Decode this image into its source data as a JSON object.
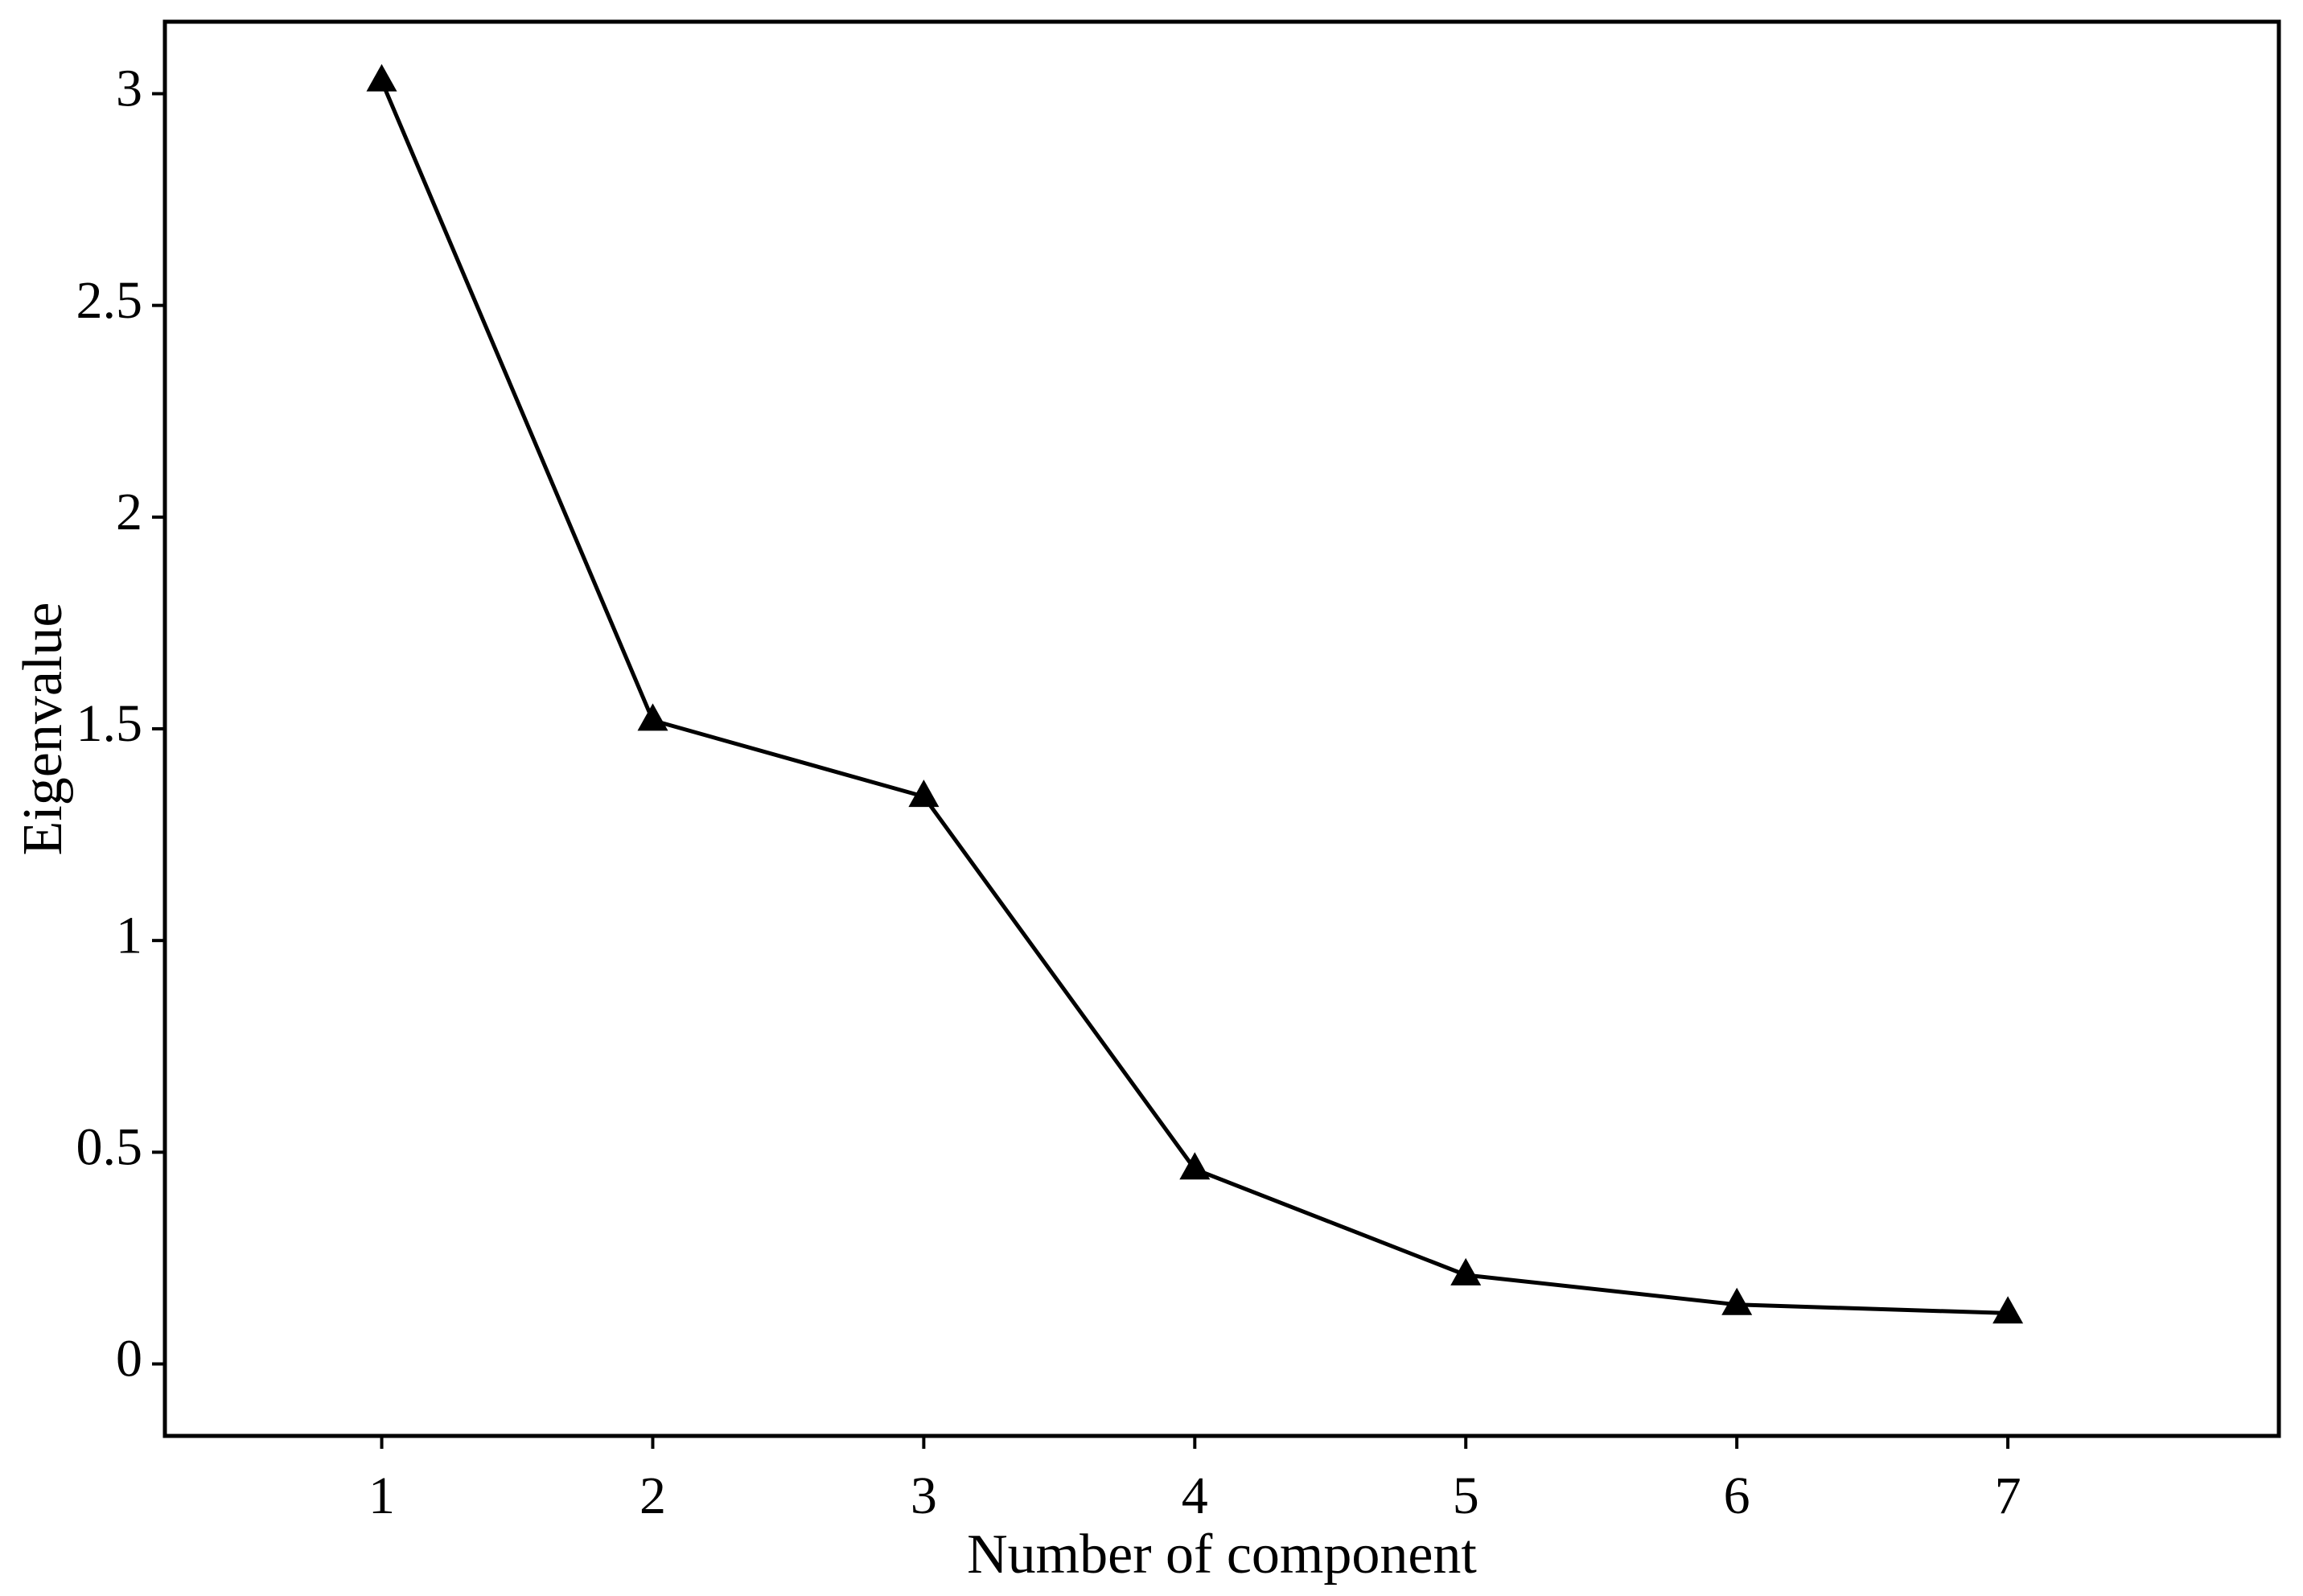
{
  "chart_data": {
    "type": "line",
    "title": "",
    "xlabel": "Number of component",
    "ylabel": "Eigenvalue",
    "x": [
      1,
      2,
      3,
      4,
      5,
      6,
      7
    ],
    "series": [
      {
        "values": [
          3.03,
          1.52,
          1.34,
          0.46,
          0.21,
          0.14,
          0.12
        ],
        "marker": "triangle",
        "color": "#000000"
      }
    ],
    "xticks": [
      "1",
      "2",
      "3",
      "4",
      "5",
      "6",
      "7"
    ],
    "yticks": [
      "0",
      "0.5",
      "1",
      "1.5",
      "2",
      "2.5",
      "3"
    ],
    "xlim": [
      0.2,
      8.0
    ],
    "ylim": [
      -0.17,
      3.17
    ],
    "grid": false,
    "legend": "none"
  }
}
